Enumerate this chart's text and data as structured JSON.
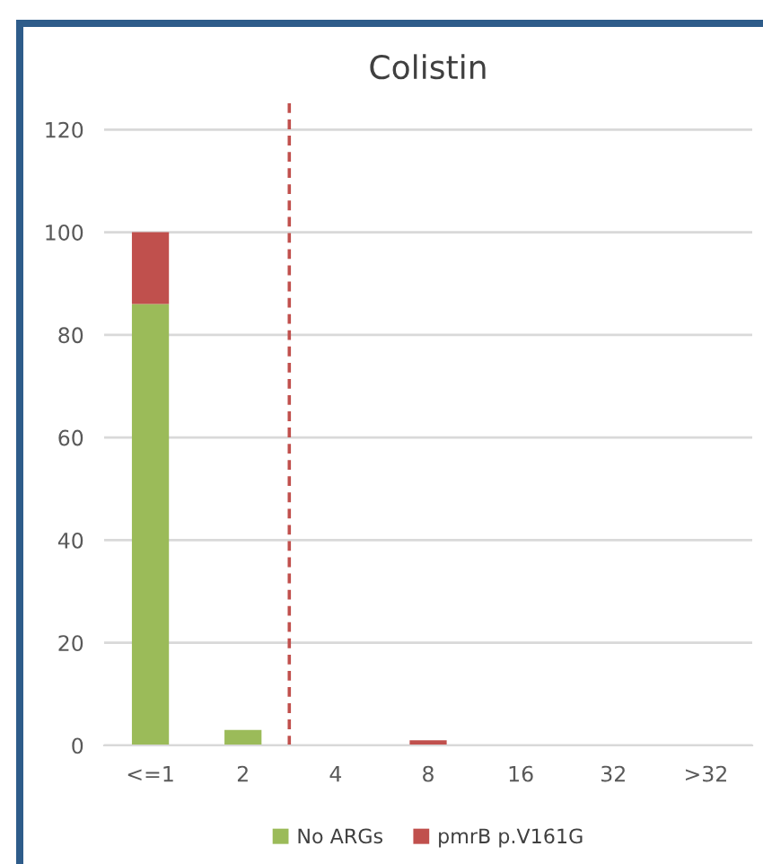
{
  "chart_data": {
    "type": "bar",
    "title": "Colistin",
    "stacked": true,
    "categories": [
      "<=1",
      "2",
      "4",
      "8",
      "16",
      "32",
      ">32"
    ],
    "series": [
      {
        "name": "No ARGs",
        "color": "#9bbb59",
        "values": [
          86,
          3,
          0,
          0,
          0,
          0,
          0
        ]
      },
      {
        "name": "pmrB p.V161G",
        "color": "#c0504d",
        "values": [
          14,
          0,
          0,
          1,
          0,
          0,
          0
        ]
      }
    ],
    "ylim": [
      0,
      126
    ],
    "yticks": [
      0,
      20,
      40,
      60,
      80,
      100,
      120
    ],
    "grid": "y",
    "legend": "bottom",
    "ref_lines": [
      {
        "axis": "x",
        "value": "2",
        "color": "#c0504d",
        "line_style": "dashed"
      }
    ]
  }
}
